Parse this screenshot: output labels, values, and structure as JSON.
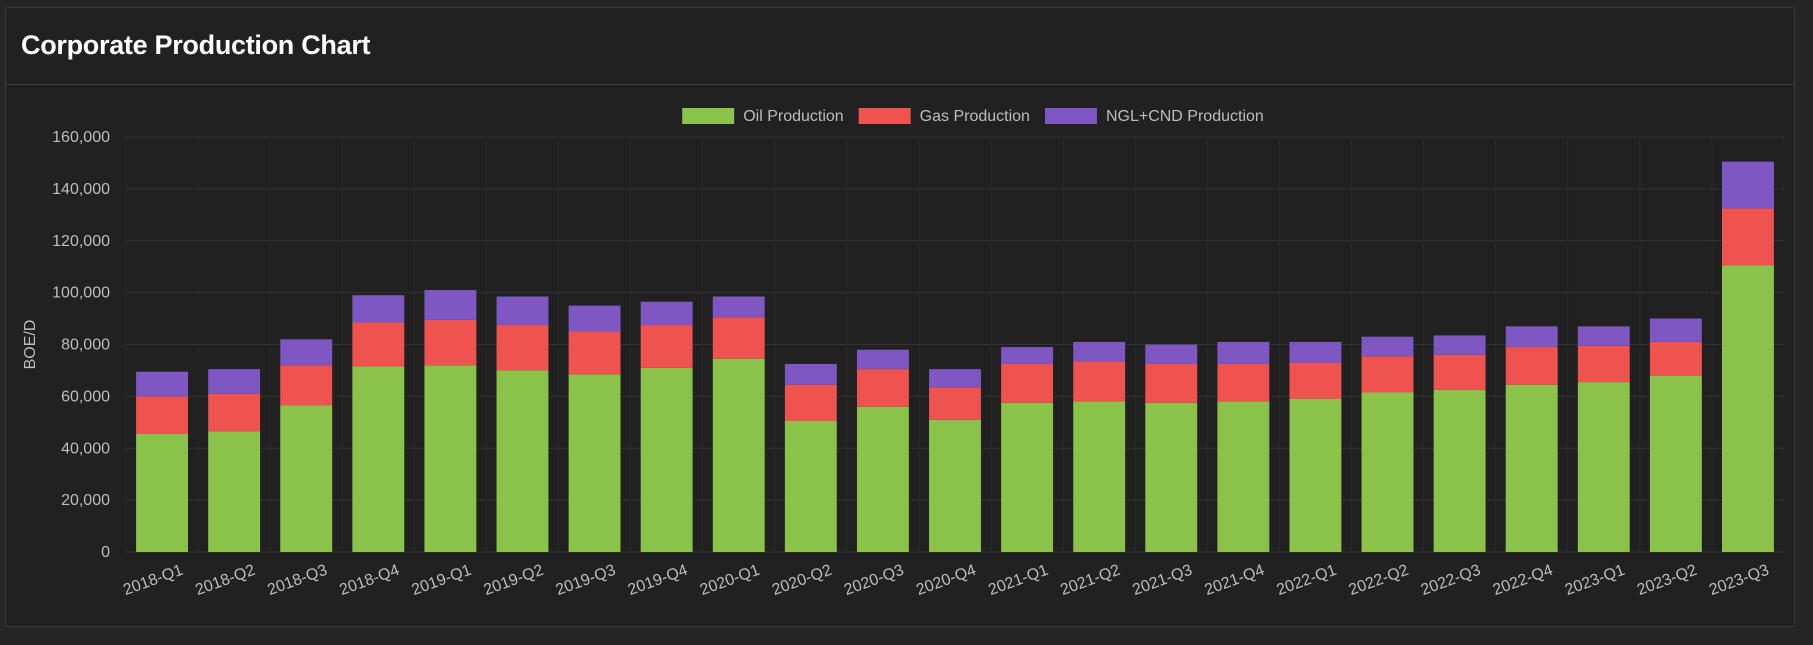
{
  "panel": {
    "title": "Corporate Production Chart"
  },
  "colors": {
    "oil": "#8bc34a",
    "gas": "#ef5350",
    "ngl": "#7e57c2",
    "grid": "#333333",
    "text": "#bdbdbd"
  },
  "chart_data": {
    "type": "bar",
    "stacked": true,
    "xlabel": "",
    "ylabel": "BOE/D",
    "ylim": [
      0,
      160000
    ],
    "yticks": [
      0,
      20000,
      40000,
      60000,
      80000,
      100000,
      120000,
      140000,
      160000
    ],
    "ytick_labels": [
      "0",
      "20,000",
      "40,000",
      "60,000",
      "80,000",
      "100,000",
      "120,000",
      "140,000",
      "160,000"
    ],
    "grid": true,
    "legend": "top-center",
    "categories": [
      "2018-Q1",
      "2018-Q2",
      "2018-Q3",
      "2018-Q4",
      "2019-Q1",
      "2019-Q2",
      "2019-Q3",
      "2019-Q4",
      "2020-Q1",
      "2020-Q2",
      "2020-Q3",
      "2020-Q4",
      "2021-Q1",
      "2021-Q2",
      "2021-Q3",
      "2021-Q4",
      "2022-Q1",
      "2022-Q2",
      "2022-Q3",
      "2022-Q4",
      "2023-Q1",
      "2023-Q2",
      "2023-Q3"
    ],
    "series": [
      {
        "name": "Oil Production",
        "color": "#8bc34a",
        "values": [
          45500,
          46500,
          56500,
          71500,
          72000,
          70000,
          68500,
          71000,
          74500,
          50500,
          56000,
          51000,
          57500,
          58000,
          57500,
          58000,
          59000,
          61500,
          62500,
          64500,
          65500,
          68000,
          110500
        ]
      },
      {
        "name": "Gas Production",
        "color": "#ef5350",
        "values": [
          14500,
          14500,
          15500,
          17000,
          17500,
          17500,
          16500,
          16500,
          16000,
          14000,
          14500,
          12500,
          15000,
          15500,
          15000,
          14500,
          14000,
          14000,
          13500,
          14500,
          14000,
          13000,
          22000
        ]
      },
      {
        "name": "NGL+CND Production",
        "color": "#7e57c2",
        "values": [
          9500,
          9500,
          10000,
          10500,
          11500,
          11000,
          10000,
          9000,
          8000,
          8000,
          7500,
          7000,
          6500,
          7500,
          7500,
          8500,
          8000,
          7500,
          7500,
          8000,
          7500,
          9000,
          18000
        ]
      }
    ]
  }
}
